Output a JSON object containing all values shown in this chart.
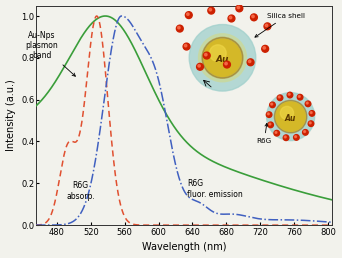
{
  "x_min": 455,
  "x_max": 805,
  "y_min": 0.0,
  "y_max": 1.05,
  "xlabel": "Wavelength (nm)",
  "ylabel": "Intensity (a.u.)",
  "xticks": [
    480,
    520,
    560,
    600,
    640,
    680,
    720,
    760,
    800
  ],
  "yticks": [
    0.0,
    0.2,
    0.4,
    0.6,
    0.8,
    1.0
  ],
  "plasmon_color": "#3a9e3a",
  "absorption_color": "#e05030",
  "emission_color": "#4060c0",
  "annotation_plasmon": "Au-Nps\nplasmon\nband",
  "annotation_absorption": "R6G\nabsorp.",
  "annotation_emission": "R6G\nfluor. emission",
  "annotation_silica": "Silica shell",
  "annotation_r6g": "R6G",
  "background_color": "#f2f2ec",
  "silica_color": "#80bfb8",
  "au_color": "#d4b830",
  "au_dark_color": "#b89020",
  "dye_color": "#cc2000",
  "dye_highlight": "#ff7755"
}
